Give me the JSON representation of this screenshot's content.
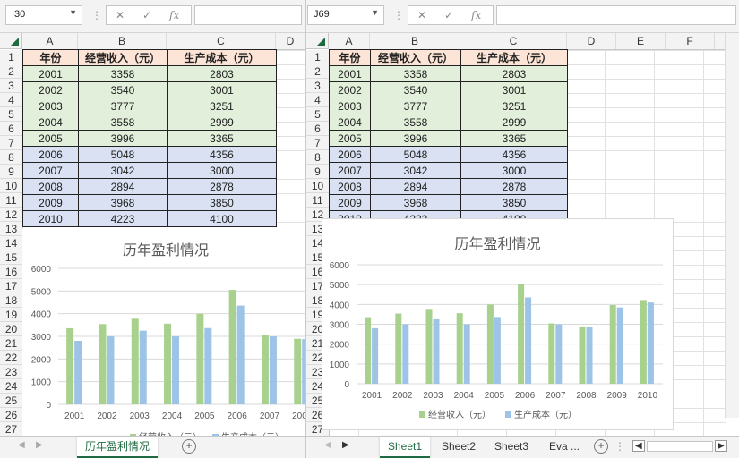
{
  "left": {
    "name_box": "I30",
    "formula": "",
    "columns": [
      "A",
      "B",
      "C",
      "D"
    ],
    "rows": [
      "1",
      "2",
      "3",
      "4",
      "5",
      "6",
      "7",
      "8",
      "9",
      "10",
      "11",
      "12",
      "13",
      "14",
      "15",
      "16",
      "17",
      "18",
      "19",
      "20",
      "21",
      "22",
      "23",
      "24",
      "25",
      "26",
      "27"
    ],
    "active_tab": "历年盈利情况"
  },
  "right": {
    "name_box": "J69",
    "formula": "",
    "columns": [
      "A",
      "B",
      "C",
      "D",
      "E",
      "F"
    ],
    "rows": [
      "1",
      "2",
      "3",
      "4",
      "5",
      "6",
      "7",
      "8",
      "9",
      "10",
      "11",
      "12",
      "13",
      "14",
      "15",
      "16",
      "17",
      "18",
      "19",
      "20",
      "21",
      "22",
      "23",
      "24",
      "25",
      "26",
      "27"
    ],
    "tabs": [
      "Sheet1",
      "Sheet2",
      "Sheet3",
      "Eva ..."
    ],
    "active_tab": "Sheet1"
  },
  "table": {
    "headers": [
      "年份",
      "经营收入（元）",
      "生产成本（元）"
    ],
    "rows": [
      [
        "2001",
        "3358",
        "2803"
      ],
      [
        "2002",
        "3540",
        "3001"
      ],
      [
        "2003",
        "3777",
        "3251"
      ],
      [
        "2004",
        "3558",
        "2999"
      ],
      [
        "2005",
        "3996",
        "3365"
      ],
      [
        "2006",
        "5048",
        "4356"
      ],
      [
        "2007",
        "3042",
        "3000"
      ],
      [
        "2008",
        "2894",
        "2878"
      ],
      [
        "2009",
        "3968",
        "3850"
      ],
      [
        "2010",
        "4223",
        "4100"
      ]
    ]
  },
  "colors": {
    "income": "#a9d18e",
    "cost": "#9dc3e6",
    "green_fill": "#e2efda",
    "blue_fill": "#d9e1f2",
    "header_fill": "#fce4d6",
    "accent": "#1e6b41"
  },
  "chart_data": [
    {
      "type": "bar",
      "title": "历年盈利情况",
      "categories": [
        "2001",
        "2002",
        "2003",
        "2004",
        "2005",
        "2006",
        "2007",
        "2008"
      ],
      "series": [
        {
          "name": "经营收入（元）",
          "values": [
            3358,
            3540,
            3777,
            3558,
            3996,
            5048,
            3042,
            2894
          ]
        },
        {
          "name": "生产成本（元）",
          "values": [
            2803,
            3001,
            3251,
            2999,
            3365,
            4356,
            3000,
            2878
          ]
        }
      ],
      "ylim": [
        0,
        6000
      ],
      "yticks": [
        "0",
        "1000",
        "2000",
        "3000",
        "4000",
        "5000",
        "6000"
      ],
      "legend": "bottom",
      "grid": true
    },
    {
      "type": "bar",
      "title": "历年盈利情况",
      "categories": [
        "2001",
        "2002",
        "2003",
        "2004",
        "2005",
        "2006",
        "2007",
        "2008",
        "2009",
        "2010"
      ],
      "series": [
        {
          "name": "经营收入（元）",
          "values": [
            3358,
            3540,
            3777,
            3558,
            3996,
            5048,
            3042,
            2894,
            3968,
            4223
          ]
        },
        {
          "name": "生产成本（元）",
          "values": [
            2803,
            3001,
            3251,
            2999,
            3365,
            4356,
            3000,
            2878,
            3850,
            4100
          ]
        }
      ],
      "ylim": [
        0,
        6000
      ],
      "yticks": [
        "0",
        "1000",
        "2000",
        "3000",
        "4000",
        "5000",
        "6000"
      ],
      "legend": "bottom",
      "grid": true
    }
  ]
}
